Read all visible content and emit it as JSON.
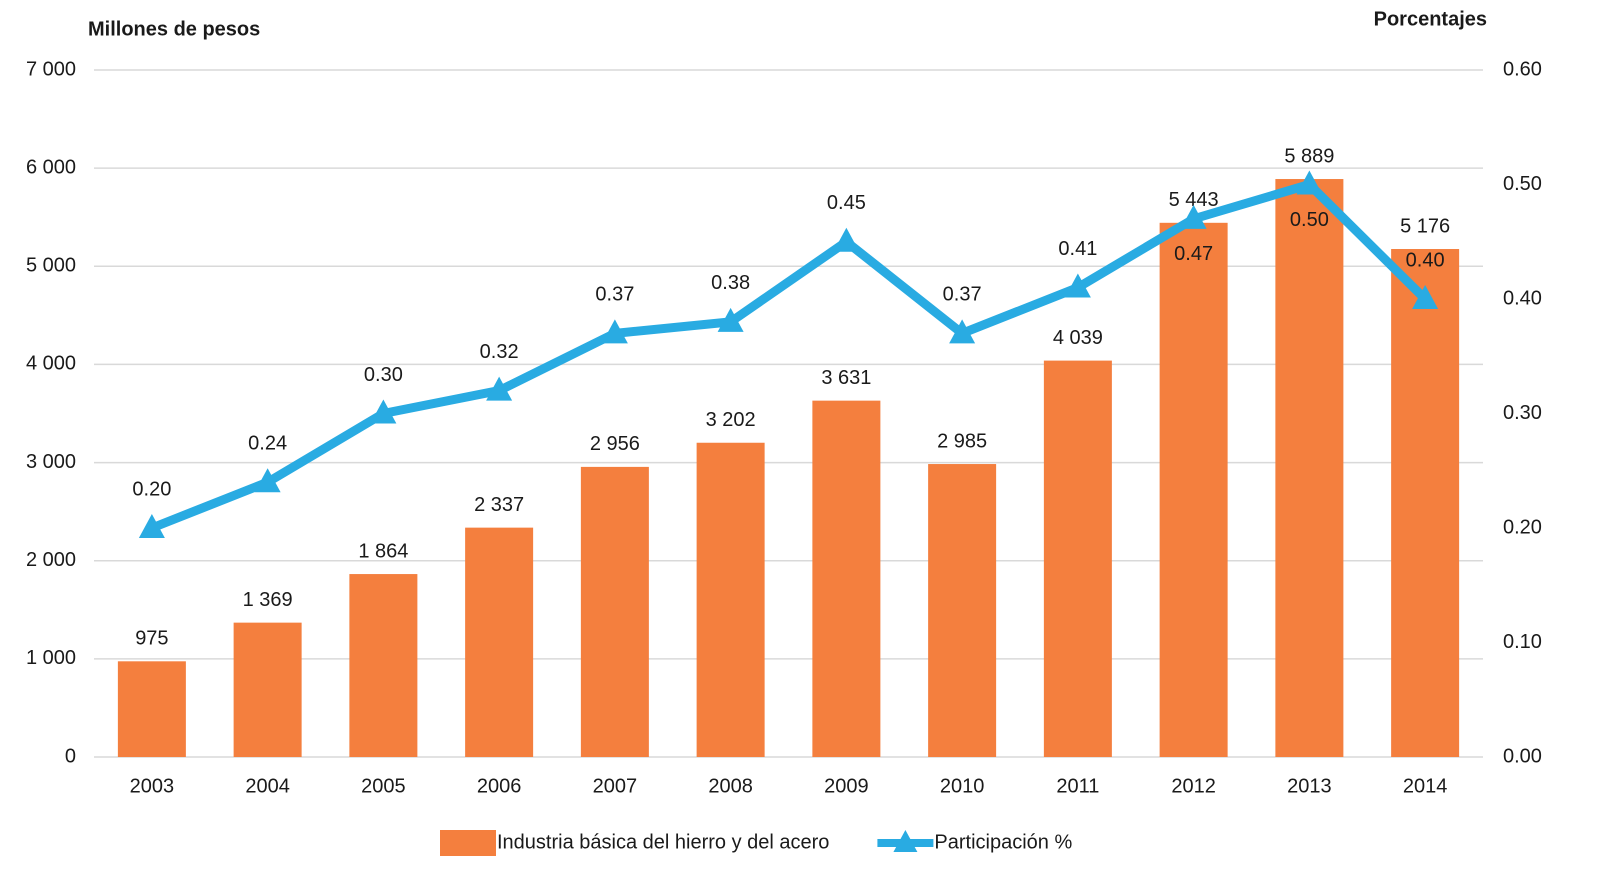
{
  "chart_data": {
    "type": "bar-line",
    "y_label": "Millones de pesos",
    "y2_label": "Porcentajes",
    "categories": [
      "2003",
      "2004",
      "2005",
      "2006",
      "2007",
      "2008",
      "2009",
      "2010",
      "2011",
      "2012",
      "2013",
      "2014"
    ],
    "ylim": [
      0,
      7000
    ],
    "yticks": [
      {
        "value": 0,
        "label": "0"
      },
      {
        "value": 1000,
        "label": "1 000"
      },
      {
        "value": 2000,
        "label": "2 000"
      },
      {
        "value": 3000,
        "label": "3 000"
      },
      {
        "value": 4000,
        "label": "4 000"
      },
      {
        "value": 5000,
        "label": "5 000"
      },
      {
        "value": 6000,
        "label": "6 000"
      },
      {
        "value": 7000,
        "label": "7 000"
      }
    ],
    "y2lim": [
      0,
      0.6
    ],
    "y2ticks": [
      {
        "value": 0,
        "label": "0.00"
      },
      {
        "value": 0.1,
        "label": "0.10"
      },
      {
        "value": 0.2,
        "label": "0.20"
      },
      {
        "value": 0.3,
        "label": "0.30"
      },
      {
        "value": 0.4,
        "label": "0.40"
      },
      {
        "value": 0.5,
        "label": "0.50"
      },
      {
        "value": 0.6,
        "label": "0.60"
      }
    ],
    "grid": true,
    "legend": "bottom",
    "series": [
      {
        "name": "Industria básica del hierro y del acero",
        "type": "bar",
        "color": "#f47f3e",
        "values": [
          975,
          1369,
          1864,
          2337,
          2956,
          3202,
          3631,
          2985,
          4039,
          5443,
          5889,
          5176
        ],
        "value_labels": [
          "975",
          "1 369",
          "1 864",
          "2 337",
          "2 956",
          "3 202",
          "3 631",
          "2 985",
          "4 039",
          "5 443",
          "5 889",
          "5 176"
        ]
      },
      {
        "name": "Participación %",
        "type": "line",
        "axis": "y2",
        "color": "#29abe2",
        "values": [
          0.2,
          0.24,
          0.3,
          0.32,
          0.37,
          0.38,
          0.45,
          0.37,
          0.41,
          0.47,
          0.5,
          0.4
        ],
        "value_labels": [
          "0.20",
          "0.24",
          "0.30",
          "0.32",
          "0.37",
          "0.38",
          "0.45",
          "0.37",
          "0.41",
          "0.47",
          "0.50",
          "0.40"
        ]
      }
    ]
  }
}
